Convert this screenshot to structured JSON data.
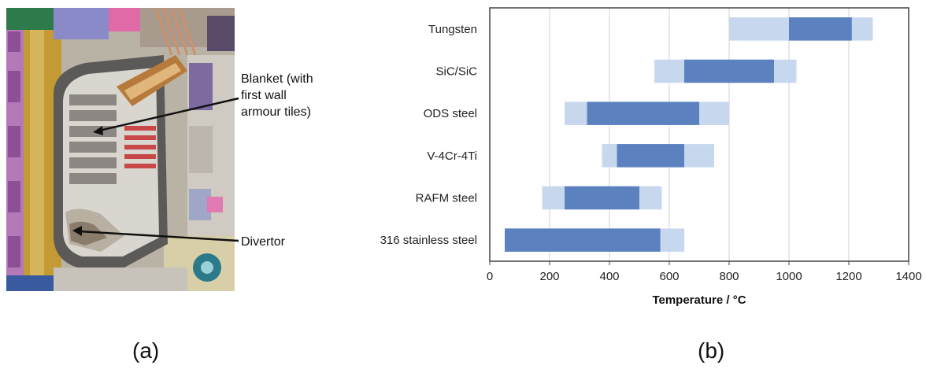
{
  "panel_a": {
    "label": "(a)",
    "annotations": [
      {
        "id": "blanket",
        "lines": [
          "Blanket (with",
          "first wall",
          "armour tiles)"
        ]
      },
      {
        "id": "divertor",
        "lines": [
          "Divertor"
        ]
      }
    ]
  },
  "panel_b": {
    "label": "(b)"
  },
  "chart_data": {
    "type": "bar",
    "orientation": "horizontal",
    "subtype": "floating-range",
    "categories": [
      "Tungsten",
      "SiC/SiC",
      "ODS steel",
      "V-4Cr-4Ti",
      "RAFM steel",
      "316 stainless steel"
    ],
    "series": [
      {
        "role": "outer range",
        "color": "#c7d8ee",
        "ranges": [
          [
            800,
            1280
          ],
          [
            550,
            1025
          ],
          [
            250,
            800
          ],
          [
            375,
            750
          ],
          [
            175,
            575
          ],
          [
            50,
            650
          ]
        ]
      },
      {
        "role": "inner range",
        "color": "#5b82bf",
        "ranges": [
          [
            1000,
            1210
          ],
          [
            650,
            950
          ],
          [
            325,
            700
          ],
          [
            425,
            650
          ],
          [
            250,
            500
          ],
          [
            50,
            570
          ]
        ]
      }
    ],
    "xlabel": "Temperature / °C",
    "ylabel": "",
    "xlim": [
      0,
      1400
    ],
    "xticks": [
      0,
      200,
      400,
      600,
      800,
      1000,
      1200,
      1400
    ],
    "grid": "vertical",
    "border_color": "#444444",
    "grid_color": "#d0d0d0"
  }
}
